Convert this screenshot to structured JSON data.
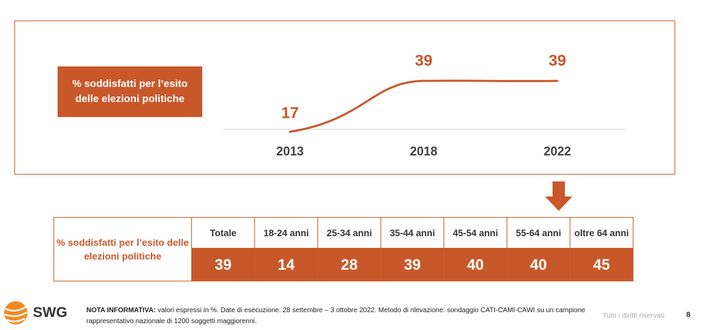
{
  "colors": {
    "accent": "#c8582a",
    "axis": "#dddddd"
  },
  "chart_data": {
    "type": "line",
    "title": "% soddisfatti per l’esito delle elezioni politiche",
    "categories": [
      "2013",
      "2018",
      "2022"
    ],
    "series": [
      {
        "name": "% soddisfatti",
        "values": [
          17,
          39,
          39
        ]
      }
    ],
    "data_labels": [
      "17",
      "39",
      "39"
    ],
    "ylim": [
      0,
      50
    ]
  },
  "table": {
    "row_label": "% soddisfatti per l’esito delle elezioni politiche",
    "columns": [
      {
        "header": "Totale",
        "value": "39"
      },
      {
        "header": "18-24 anni",
        "value": "14"
      },
      {
        "header": "25-34 anni",
        "value": "28"
      },
      {
        "header": "35-44 anni",
        "value": "39"
      },
      {
        "header": "45-54 anni",
        "value": "40"
      },
      {
        "header": "55-64 anni",
        "value": "40"
      },
      {
        "header": "oltre 64 anni",
        "value": "45"
      }
    ]
  },
  "footer": {
    "logo_text": "SWG",
    "note_label": "NOTA INFORMATIVA:",
    "note_text": " valori espressi in %. Date di esecuzione: 28 settembre – 3 ottobre 2022. Metodo di rilevazione: sondaggio CATI-CAMI-CAWI su un campione rappresentativo nazionale di 1200 soggetti maggiorenni.",
    "rights": "Tutti i diritti riservati",
    "page": "8"
  }
}
